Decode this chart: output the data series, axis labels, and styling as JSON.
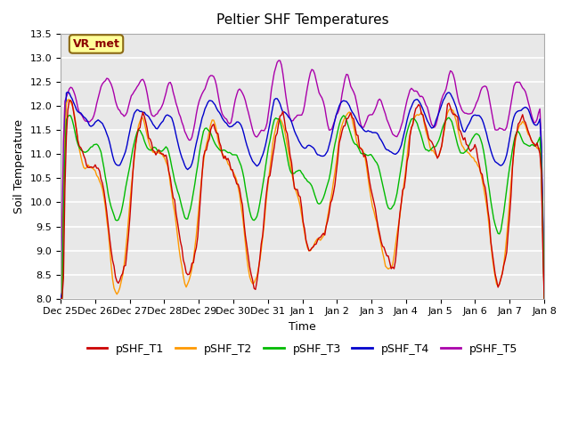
{
  "title": "Peltier SHF Temperatures",
  "xlabel": "Time",
  "ylabel": "Soil Temperature",
  "annotation": "VR_met",
  "ylim": [
    8.0,
    13.5
  ],
  "yticks": [
    8.0,
    8.5,
    9.0,
    9.5,
    10.0,
    10.5,
    11.0,
    11.5,
    12.0,
    12.5,
    13.0,
    13.5
  ],
  "series_names": [
    "pSHF_T1",
    "pSHF_T2",
    "pSHF_T3",
    "pSHF_T4",
    "pSHF_T5"
  ],
  "series_colors": [
    "#cc0000",
    "#ff9900",
    "#00bb00",
    "#0000cc",
    "#aa00aa"
  ],
  "tick_positions": [
    0,
    1,
    2,
    3,
    4,
    5,
    6,
    7,
    8,
    9,
    10,
    11,
    12,
    13,
    14
  ],
  "tick_labels": [
    "Dec 25",
    "Dec 26",
    "Dec 27",
    "Dec 28",
    "Dec 29",
    "Dec 30",
    "Dec 31",
    "Jan 1",
    "Jan 2",
    "Jan 3",
    "Jan 4",
    "Jan 5",
    "Jan 6",
    "Jan 7",
    "Jan 8"
  ],
  "n_points": 336,
  "seed": 42
}
